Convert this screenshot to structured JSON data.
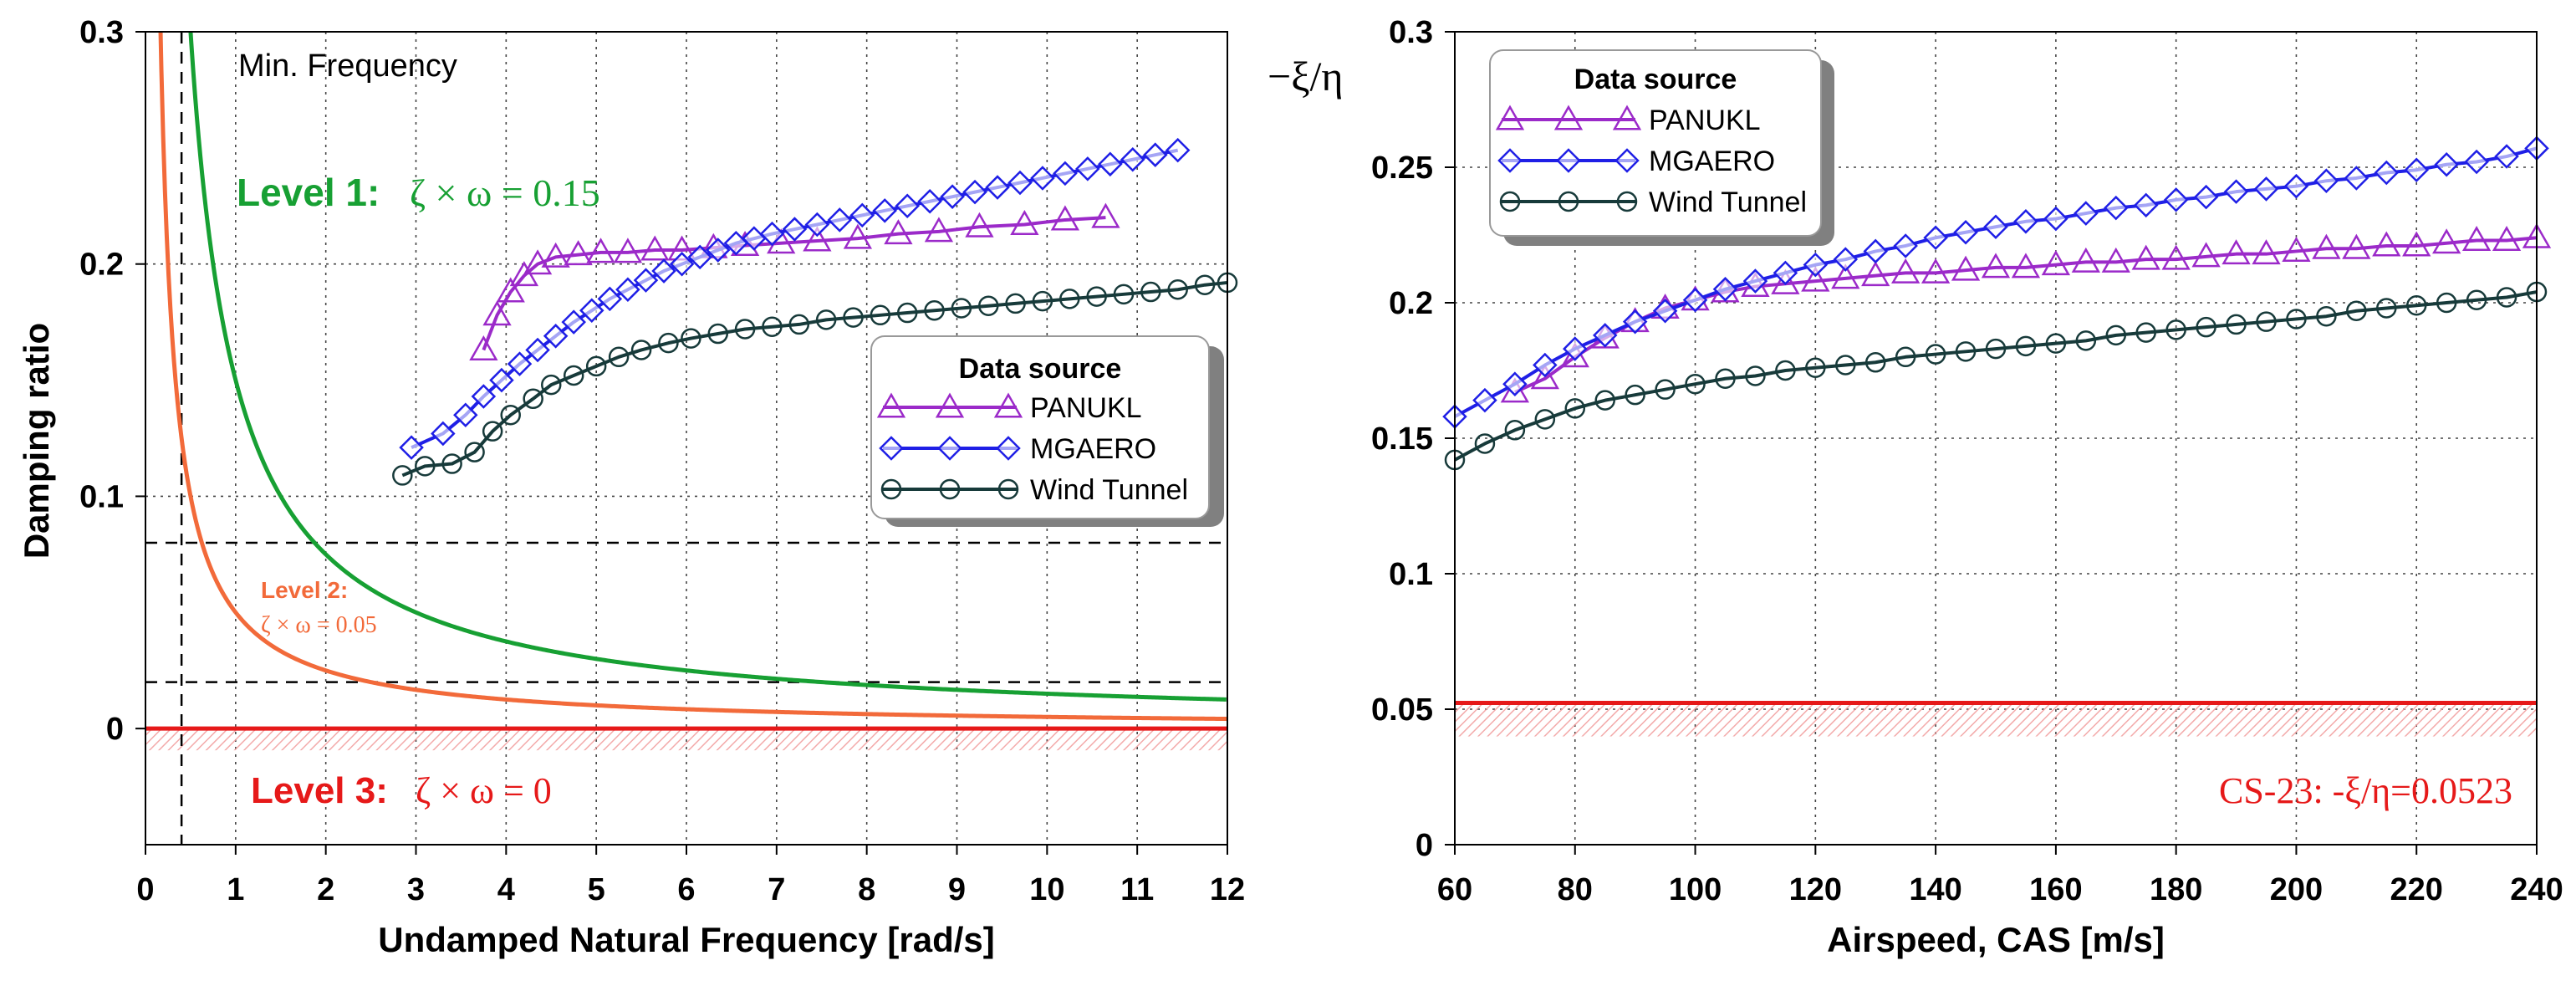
{
  "chart_data": [
    {
      "type": "line",
      "title": "",
      "xlabel": "Undamped Natural Frequency [rad/s]",
      "ylabel": "Damping ratio",
      "xlim": [
        0,
        12
      ],
      "ylim": [
        -0.05,
        0.3
      ],
      "xticks": [
        0,
        1,
        2,
        3,
        4,
        5,
        6,
        7,
        8,
        9,
        10,
        11,
        12
      ],
      "xtick_labels": [
        "0",
        "1",
        "2",
        "3",
        "4",
        "5",
        "6",
        "7",
        "8",
        "9",
        "10",
        "11",
        "12"
      ],
      "yticks": [
        0,
        0.1,
        0.2,
        0.3
      ],
      "ytick_labels": [
        "0",
        "0.1",
        "0.2",
        "0.3"
      ],
      "grid": true,
      "legend": {
        "title": "Data source",
        "position": "center-right",
        "entries": [
          "PANUKL",
          "MGAERO",
          "Wind Tunnel"
        ]
      },
      "series": [
        {
          "name": "PANUKL",
          "color": "#9b2ac9",
          "marker": "triangle",
          "x": [
            3.75,
            3.9,
            4.05,
            4.2,
            4.35,
            4.55,
            4.8,
            5.05,
            5.35,
            5.65,
            5.95,
            6.3,
            6.65,
            7.05,
            7.45,
            7.9,
            8.35,
            8.8,
            9.25,
            9.75,
            10.2,
            10.65
          ],
          "y": [
            0.163,
            0.178,
            0.188,
            0.195,
            0.2,
            0.203,
            0.204,
            0.205,
            0.205,
            0.206,
            0.206,
            0.207,
            0.208,
            0.209,
            0.21,
            0.211,
            0.213,
            0.214,
            0.216,
            0.217,
            0.219,
            0.22
          ]
        },
        {
          "name": "MGAERO",
          "color": "#1f1fe6",
          "marker": "diamond",
          "x": [
            2.95,
            3.3,
            3.55,
            3.75,
            3.95,
            4.15,
            4.35,
            4.55,
            4.75,
            4.95,
            5.15,
            5.35,
            5.55,
            5.75,
            5.95,
            6.15,
            6.35,
            6.55,
            6.75,
            6.95,
            7.2,
            7.45,
            7.7,
            7.95,
            8.2,
            8.45,
            8.7,
            8.95,
            9.2,
            9.45,
            9.7,
            9.95,
            10.2,
            10.45,
            10.7,
            10.95,
            11.2,
            11.45
          ],
          "y": [
            0.121,
            0.127,
            0.135,
            0.143,
            0.15,
            0.157,
            0.163,
            0.169,
            0.175,
            0.18,
            0.185,
            0.189,
            0.193,
            0.197,
            0.2,
            0.203,
            0.206,
            0.209,
            0.211,
            0.213,
            0.215,
            0.217,
            0.219,
            0.221,
            0.223,
            0.225,
            0.227,
            0.229,
            0.231,
            0.233,
            0.235,
            0.237,
            0.239,
            0.241,
            0.243,
            0.245,
            0.247,
            0.249
          ]
        },
        {
          "name": "Wind Tunnel",
          "color": "#173a3a",
          "marker": "circle",
          "x": [
            2.85,
            3.1,
            3.4,
            3.65,
            3.85,
            4.05,
            4.3,
            4.5,
            4.75,
            5.0,
            5.25,
            5.5,
            5.8,
            6.05,
            6.35,
            6.65,
            6.95,
            7.25,
            7.55,
            7.85,
            8.15,
            8.45,
            8.75,
            9.05,
            9.35,
            9.65,
            9.95,
            10.25,
            10.55,
            10.85,
            11.15,
            11.45,
            11.75,
            12.0
          ],
          "y": [
            0.109,
            0.113,
            0.114,
            0.119,
            0.128,
            0.135,
            0.142,
            0.148,
            0.152,
            0.156,
            0.16,
            0.163,
            0.166,
            0.168,
            0.17,
            0.172,
            0.173,
            0.174,
            0.176,
            0.177,
            0.178,
            0.179,
            0.18,
            0.181,
            0.182,
            0.183,
            0.184,
            0.185,
            0.186,
            0.187,
            0.188,
            0.189,
            0.191,
            0.192
          ]
        }
      ],
      "level_curves": [
        {
          "name": "Level 1",
          "zeta_omega": 0.15,
          "color": "#17a033"
        },
        {
          "name": "Level 2",
          "zeta_omega": 0.05,
          "color": "#f26a3a"
        },
        {
          "name": "Level 3",
          "zeta_omega": 0,
          "color": "#e61919"
        }
      ],
      "reference_lines": {
        "y_dashed": [
          0.08,
          0.02
        ],
        "x_dashed": 0.4
      },
      "annotations": {
        "min_frequency": "Min. Frequency",
        "level1_label": "Level 1:",
        "level1_formula": "ζ × ω = 0.15",
        "level2_label": "Level 2:",
        "level2_formula": "ζ × ω = 0.05",
        "level3_label": "Level 3:",
        "level3_formula": "ζ × ω = 0"
      }
    },
    {
      "type": "line",
      "title": "",
      "xlabel": "Airspeed, CAS [m/s]",
      "ylabel": "−ξ/η",
      "xlim": [
        60,
        240
      ],
      "ylim": [
        0,
        0.3
      ],
      "xticks": [
        60,
        80,
        100,
        120,
        140,
        160,
        180,
        200,
        220,
        240
      ],
      "xtick_labels": [
        "60",
        "80",
        "100",
        "120",
        "140",
        "160",
        "180",
        "200",
        "220",
        "240"
      ],
      "yticks": [
        0,
        0.05,
        0.1,
        0.15,
        0.2,
        0.25,
        0.3
      ],
      "ytick_labels": [
        "0",
        "0.05",
        "0.1",
        "0.15",
        "0.2",
        "0.25",
        "0.3"
      ],
      "grid": true,
      "legend": {
        "title": "Data source",
        "position": "top-left",
        "entries": [
          "PANUKL",
          "MGAERO",
          "Wind Tunnel"
        ]
      },
      "series": [
        {
          "name": "PANUKL",
          "color": "#9b2ac9",
          "marker": "triangle",
          "x": [
            70,
            75,
            80,
            85,
            90,
            95,
            100,
            105,
            110,
            115,
            120,
            125,
            130,
            135,
            140,
            145,
            150,
            155,
            160,
            165,
            170,
            175,
            180,
            185,
            190,
            195,
            200,
            205,
            210,
            215,
            220,
            225,
            230,
            235,
            240
          ],
          "y": [
            0.167,
            0.172,
            0.18,
            0.187,
            0.193,
            0.198,
            0.201,
            0.204,
            0.206,
            0.207,
            0.208,
            0.209,
            0.21,
            0.211,
            0.211,
            0.212,
            0.213,
            0.213,
            0.214,
            0.215,
            0.215,
            0.216,
            0.216,
            0.217,
            0.218,
            0.218,
            0.219,
            0.22,
            0.22,
            0.221,
            0.221,
            0.222,
            0.223,
            0.223,
            0.224
          ]
        },
        {
          "name": "MGAERO",
          "color": "#1f1fe6",
          "marker": "diamond",
          "x": [
            60,
            65,
            70,
            75,
            80,
            85,
            90,
            95,
            100,
            105,
            110,
            115,
            120,
            125,
            130,
            135,
            140,
            145,
            150,
            155,
            160,
            165,
            170,
            175,
            180,
            185,
            190,
            195,
            200,
            205,
            210,
            215,
            220,
            225,
            230,
            235,
            240
          ],
          "y": [
            0.158,
            0.164,
            0.17,
            0.177,
            0.183,
            0.188,
            0.193,
            0.197,
            0.201,
            0.205,
            0.208,
            0.211,
            0.214,
            0.216,
            0.219,
            0.221,
            0.224,
            0.226,
            0.228,
            0.23,
            0.231,
            0.233,
            0.235,
            0.236,
            0.238,
            0.239,
            0.241,
            0.242,
            0.243,
            0.245,
            0.246,
            0.248,
            0.249,
            0.251,
            0.252,
            0.254,
            0.257
          ]
        },
        {
          "name": "Wind Tunnel",
          "color": "#173a3a",
          "marker": "circle",
          "x": [
            60,
            65,
            70,
            75,
            80,
            85,
            90,
            95,
            100,
            105,
            110,
            115,
            120,
            125,
            130,
            135,
            140,
            145,
            150,
            155,
            160,
            165,
            170,
            175,
            180,
            185,
            190,
            195,
            200,
            205,
            210,
            215,
            220,
            225,
            230,
            235,
            240
          ],
          "y": [
            0.142,
            0.148,
            0.153,
            0.157,
            0.161,
            0.164,
            0.166,
            0.168,
            0.17,
            0.172,
            0.173,
            0.175,
            0.176,
            0.177,
            0.178,
            0.18,
            0.181,
            0.182,
            0.183,
            0.184,
            0.185,
            0.186,
            0.188,
            0.189,
            0.19,
            0.191,
            0.192,
            0.193,
            0.194,
            0.195,
            0.197,
            0.198,
            0.199,
            0.2,
            0.201,
            0.202,
            0.204
          ]
        }
      ],
      "reference_line": {
        "y": 0.0523,
        "color": "#e61919"
      },
      "annotations": {
        "cs23": "CS-23: -ξ/η=0.0523"
      }
    }
  ]
}
